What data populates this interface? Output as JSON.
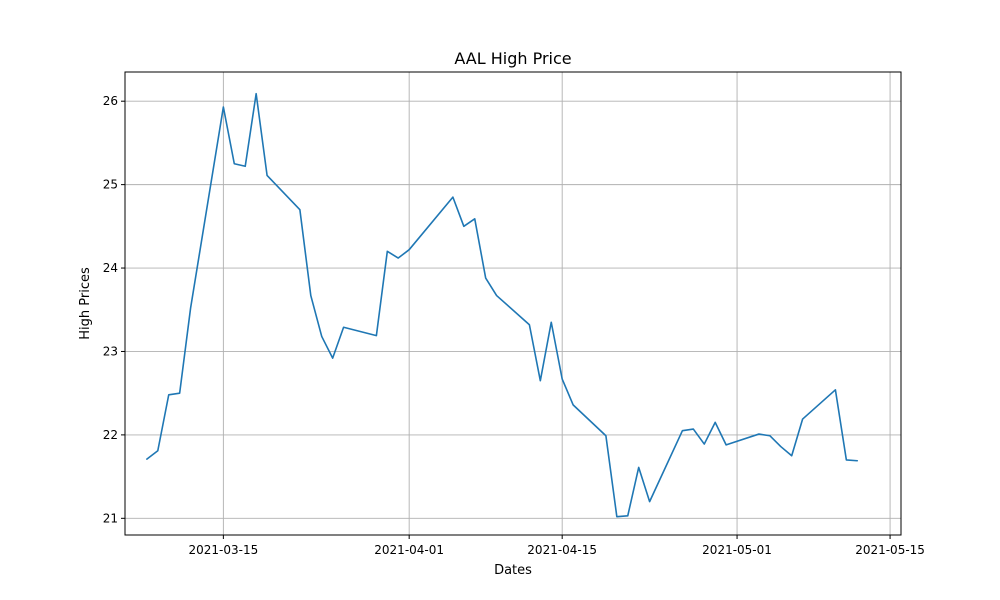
{
  "chart_data": {
    "type": "line",
    "title": "AAL High Price",
    "xlabel": "Dates",
    "ylabel": "High Prices",
    "grid": true,
    "xlim": [
      "2021-03-06",
      "2021-05-16"
    ],
    "ylim": [
      20.8,
      26.35
    ],
    "x_ticks": [
      "2021-03-15",
      "2021-04-01",
      "2021-04-15",
      "2021-05-01",
      "2021-05-15"
    ],
    "y_ticks": [
      21,
      22,
      23,
      24,
      25,
      26
    ],
    "series": [
      {
        "color": "#1f77b4",
        "x": [
          "2021-03-08",
          "2021-03-09",
          "2021-03-10",
          "2021-03-11",
          "2021-03-12",
          "2021-03-15",
          "2021-03-16",
          "2021-03-17",
          "2021-03-18",
          "2021-03-19",
          "2021-03-22",
          "2021-03-23",
          "2021-03-24",
          "2021-03-25",
          "2021-03-26",
          "2021-03-29",
          "2021-03-30",
          "2021-03-31",
          "2021-04-01",
          "2021-04-05",
          "2021-04-06",
          "2021-04-07",
          "2021-04-08",
          "2021-04-09",
          "2021-04-12",
          "2021-04-13",
          "2021-04-14",
          "2021-04-15",
          "2021-04-16",
          "2021-04-19",
          "2021-04-20",
          "2021-04-21",
          "2021-04-22",
          "2021-04-23",
          "2021-04-26",
          "2021-04-27",
          "2021-04-28",
          "2021-04-29",
          "2021-04-30",
          "2021-05-03",
          "2021-05-04",
          "2021-05-05",
          "2021-05-06",
          "2021-05-07",
          "2021-05-10",
          "2021-05-11",
          "2021-05-12"
        ],
        "values": [
          21.71,
          21.81,
          22.48,
          22.5,
          23.52,
          25.93,
          25.25,
          25.22,
          26.09,
          25.11,
          24.7,
          23.67,
          23.18,
          22.92,
          23.29,
          23.19,
          24.2,
          24.12,
          24.22,
          24.85,
          24.5,
          24.59,
          23.88,
          23.67,
          23.32,
          22.65,
          23.35,
          22.67,
          22.36,
          21.99,
          21.02,
          21.03,
          21.61,
          21.2,
          22.05,
          22.07,
          21.89,
          22.15,
          21.88,
          22.01,
          21.99,
          21.86,
          21.75,
          22.19,
          22.54,
          21.7,
          21.69
        ]
      }
    ]
  }
}
